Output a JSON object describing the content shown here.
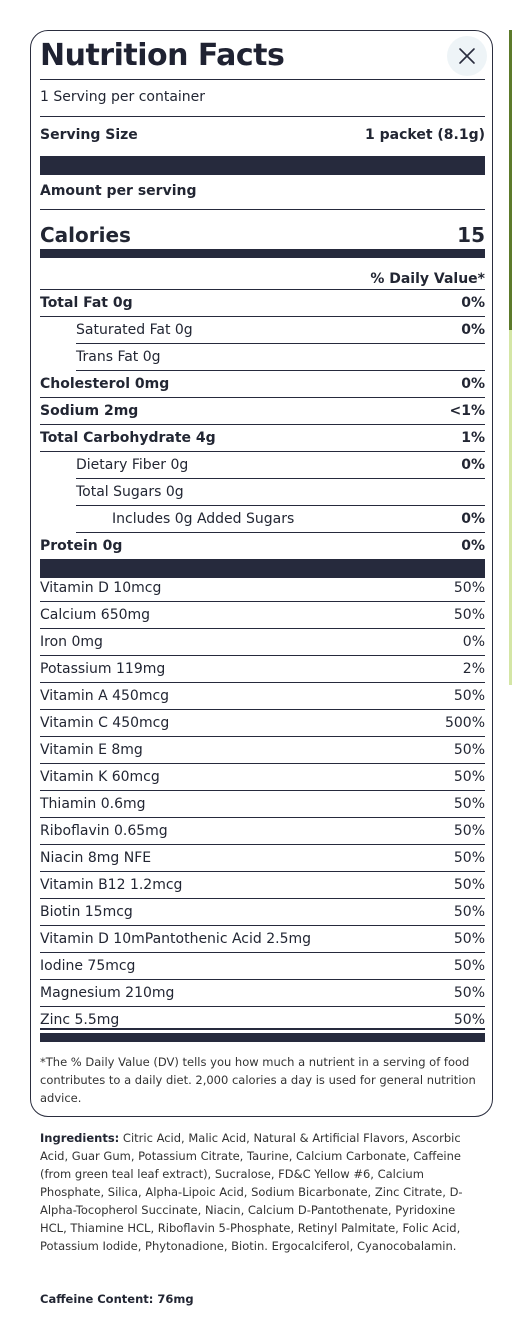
{
  "title": "Nutrition Facts",
  "servings_per_container": "1 Serving per container",
  "serving_size_label": "Serving Size",
  "serving_size_value": "1 packet (8.1g)",
  "amount_per_serving": "Amount per serving",
  "calories_label": "Calories",
  "calories_value": "15",
  "daily_value_header": "% Daily Value*",
  "macros": [
    {
      "label": "Total Fat 0g",
      "dv": "0%",
      "indent": 0,
      "bold": true
    },
    {
      "label": "Saturated Fat 0g",
      "dv": "0%",
      "indent": 1,
      "bold": false
    },
    {
      "label": "Trans Fat 0g",
      "dv": "",
      "indent": 1,
      "bold": false
    },
    {
      "label": "Cholesterol 0mg",
      "dv": "0%",
      "indent": 0,
      "bold": true
    },
    {
      "label": "Sodium 2mg",
      "dv": "<1%",
      "indent": 0,
      "bold": true
    },
    {
      "label": "Total Carbohydrate 4g",
      "dv": "1%",
      "indent": 0,
      "bold": true
    },
    {
      "label": "Dietary Fiber 0g",
      "dv": "0%",
      "indent": 1,
      "bold": false
    },
    {
      "label": "Total Sugars 0g",
      "dv": "",
      "indent": 1,
      "bold": false
    },
    {
      "label": "Includes 0g Added Sugars",
      "dv": "0%",
      "indent": 2,
      "bold": false
    },
    {
      "label": "Protein 0g",
      "dv": "0%",
      "indent": 0,
      "bold": true
    }
  ],
  "vitamins": [
    {
      "label": "Vitamin D 10mcg",
      "dv": "50%"
    },
    {
      "label": "Calcium 650mg",
      "dv": "50%"
    },
    {
      "label": "Iron 0mg",
      "dv": "0%"
    },
    {
      "label": "Potassium 119mg",
      "dv": "2%"
    },
    {
      "label": "Vitamin A 450mcg",
      "dv": "50%"
    },
    {
      "label": "Vitamin C 450mcg",
      "dv": "500%"
    },
    {
      "label": "Vitamin E 8mg",
      "dv": "50%"
    },
    {
      "label": "Vitamin K 60mcg",
      "dv": "50%"
    },
    {
      "label": "Thiamin 0.6mg",
      "dv": "50%"
    },
    {
      "label": "Riboflavin 0.65mg",
      "dv": "50%"
    },
    {
      "label": "Niacin 8mg NFE",
      "dv": "50%"
    },
    {
      "label": "Vitamin B12 1.2mcg",
      "dv": "50%"
    },
    {
      "label": "Biotin 15mcg",
      "dv": "50%"
    },
    {
      "label": "Vitamin D 10mPantothenic Acid 2.5mg",
      "dv": "50%"
    },
    {
      "label": "Iodine 75mcg",
      "dv": "50%"
    },
    {
      "label": "Magnesium 210mg",
      "dv": "50%"
    },
    {
      "label": "Zinc 5.5mg",
      "dv": "50%"
    }
  ],
  "footnote": "*The % Daily Value (DV) tells you how much a nutrient in a serving of food contributes to a daily diet. 2,000 calories a day is used for general nutrition advice.",
  "ingredients_label": "Ingredients:",
  "ingredients_text": " Citric Acid, Malic Acid, Natural & Artificial Flavors, Ascorbic Acid, Guar Gum, Potassium Citrate, Taurine, Calcium Carbonate, Caffeine (from green teal leaf extract), Sucralose, FD&C Yellow #6, Calcium Phosphate, Silica, Alpha-Lipoic Acid, Sodium Bicarbonate, Zinc Citrate, D-Alpha-Tocopherol Succinate, Niacin, Calcium D-Pantothenate, Pyridoxine HCL, Thiamine HCL, Riboflavin 5-Phosphate, Retinyl Palmitate, Folic Acid, Potassium Iodide, Phytonadione, Biotin. Ergocalciferol, Cyanocobalamin.",
  "caffeine": "Caffeine Content: 76mg",
  "icons": {
    "close": "close-icon"
  },
  "colors": {
    "rule": "#262a3d",
    "close_bg": "#eef4f7",
    "scroll_thumb": "#5c7a2a",
    "scroll_track": "#d4e6a6"
  }
}
